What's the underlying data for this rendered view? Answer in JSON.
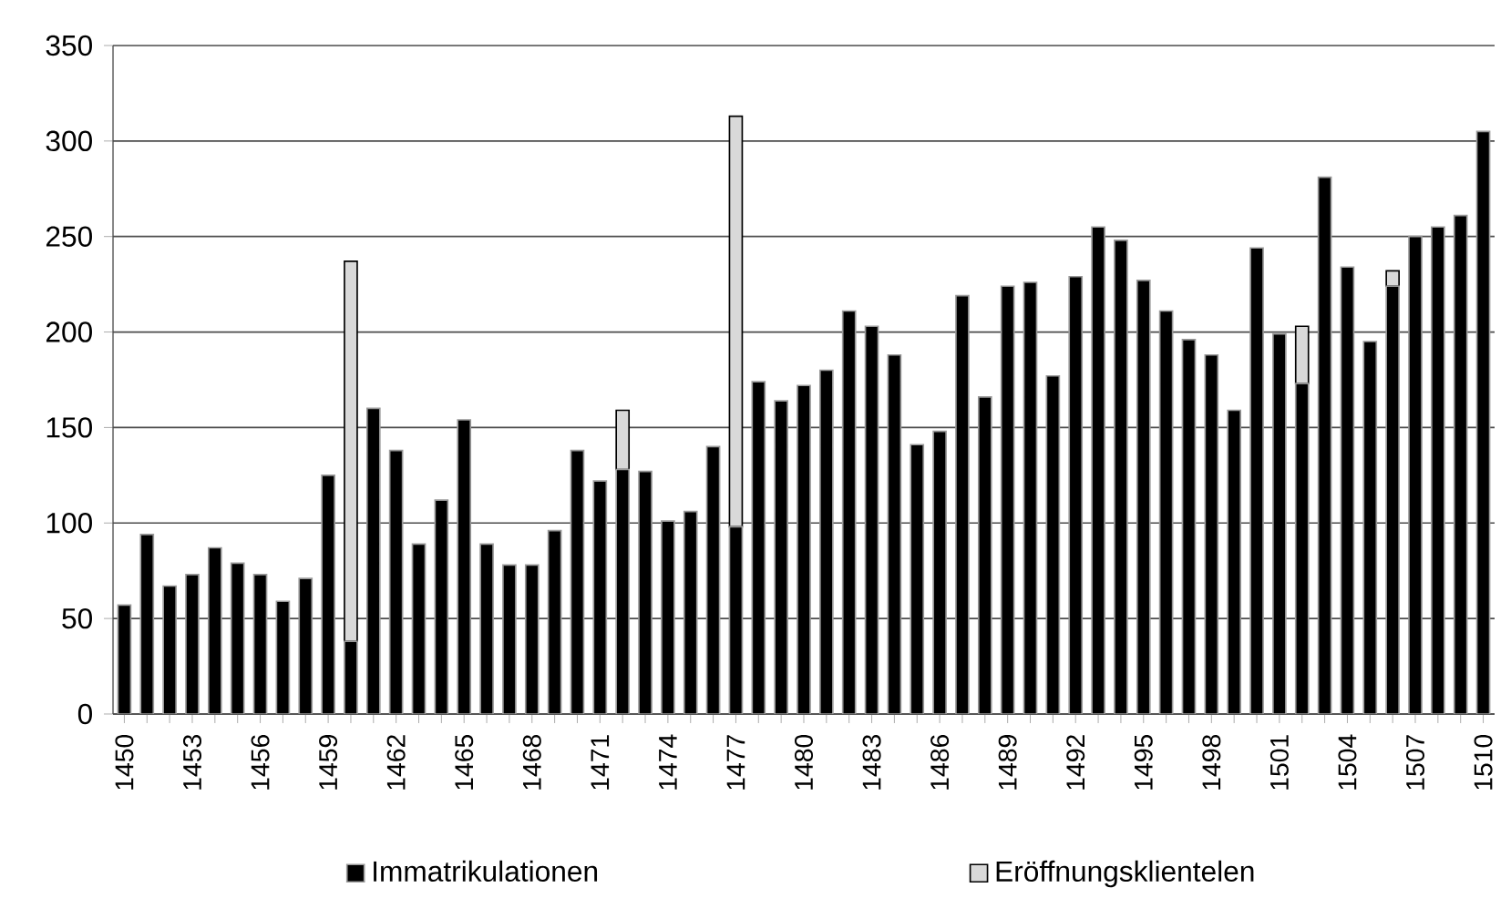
{
  "chart_data": {
    "type": "bar",
    "stacked": true,
    "categories": [
      "1450",
      null,
      null,
      "1453",
      null,
      null,
      "1456",
      null,
      null,
      "1459",
      null,
      null,
      "1462",
      null,
      null,
      "1465",
      null,
      null,
      "1468",
      null,
      null,
      "1471",
      null,
      null,
      "1474",
      null,
      null,
      "1477",
      null,
      null,
      "1480",
      null,
      null,
      "1483",
      null,
      null,
      "1486",
      null,
      null,
      "1489",
      null,
      null,
      "1492",
      null,
      null,
      "1495",
      null,
      null,
      "1498",
      null,
      null,
      "1501",
      null,
      null,
      "1504",
      null,
      null,
      "1507",
      null,
      null,
      "1510"
    ],
    "series": [
      {
        "name": "Immatrikulationen",
        "color": "#000000",
        "values": [
          57,
          94,
          67,
          73,
          87,
          79,
          73,
          59,
          71,
          125,
          38,
          160,
          138,
          89,
          112,
          154,
          89,
          78,
          78,
          96,
          138,
          122,
          128,
          127,
          101,
          106,
          140,
          98,
          174,
          164,
          172,
          180,
          211,
          203,
          188,
          141,
          148,
          219,
          166,
          224,
          226,
          177,
          229,
          255,
          248,
          227,
          211,
          196,
          188,
          159,
          244,
          199,
          173,
          281,
          234,
          195,
          224,
          250,
          255,
          261,
          305
        ]
      },
      {
        "name": "Eröffnungsklientelen",
        "color": "#d9d9d9",
        "values": [
          null,
          null,
          null,
          null,
          null,
          null,
          null,
          null,
          null,
          null,
          199,
          null,
          null,
          null,
          null,
          null,
          null,
          null,
          null,
          null,
          null,
          null,
          31,
          null,
          null,
          null,
          null,
          215,
          null,
          null,
          null,
          null,
          null,
          null,
          null,
          null,
          null,
          null,
          null,
          null,
          null,
          null,
          null,
          null,
          null,
          null,
          null,
          null,
          null,
          null,
          null,
          null,
          30,
          null,
          null,
          null,
          8,
          null,
          null,
          null,
          null
        ]
      }
    ],
    "ylim": [
      0,
      350
    ],
    "yticks": [
      0,
      50,
      100,
      150,
      200,
      250,
      300,
      350
    ],
    "grid": "y",
    "legend": "bottom"
  }
}
